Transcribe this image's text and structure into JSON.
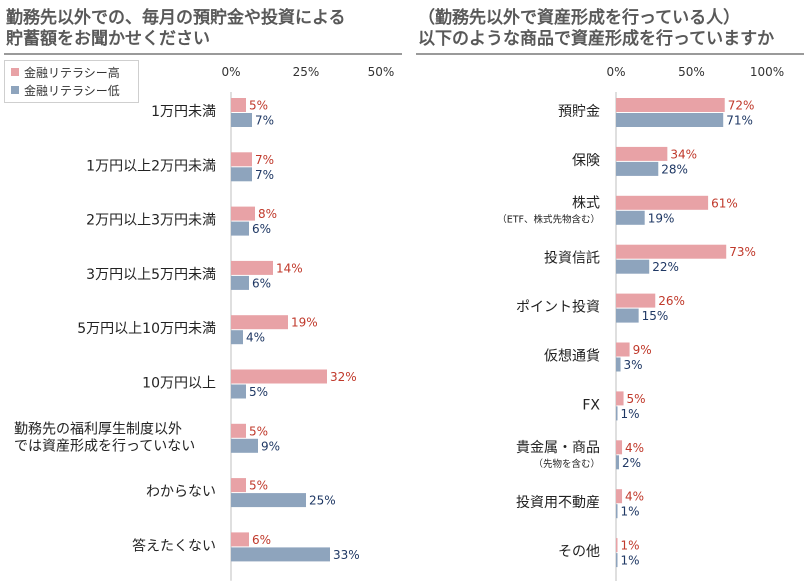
{
  "colors": {
    "high": "#E8A2A6",
    "low": "#8EA4BD",
    "high_text": "#C0392B",
    "low_text": "#1F3864",
    "category_text": "#222222",
    "tick_text": "#333333"
  },
  "left": {
    "title_lines": [
      "勤務先以外での、毎月の預貯金や投資による",
      "貯蓄額をお聞かせください"
    ]
  },
  "right": {
    "title_lines": [
      "（勤務先以外で資産形成を行っている人）",
      "以下のような商品で資産形成を行っていますか"
    ]
  },
  "legend": {
    "high_label": "金融リテラシー高",
    "low_label": "金融リテラシー低"
  },
  "chart_data": [
    {
      "type": "bar",
      "orientation": "horizontal",
      "categories": [
        "1万円未満",
        "1万円以上2万円未満",
        "2万円以上3万円未満",
        "3万円以上5万円未満",
        "5万円以上10万円未満",
        "10万円以上",
        "勤務先の福利厚生制度以外\nでは資産形成を行っていない",
        "わからない",
        "答えたくない"
      ],
      "category_sublabels": [
        "",
        "",
        "",
        "",
        "",
        "",
        "",
        "",
        ""
      ],
      "series": [
        {
          "name": "金融リテラシー高",
          "values": [
            5,
            7,
            8,
            14,
            19,
            32,
            5,
            5,
            6
          ]
        },
        {
          "name": "金融リテラシー低",
          "values": [
            7,
            7,
            6,
            6,
            4,
            5,
            9,
            25,
            33
          ]
        }
      ],
      "xlim": [
        0,
        50
      ],
      "xticks": [
        0,
        25,
        50
      ],
      "xtick_labels": [
        "0%",
        "25%",
        "50%"
      ],
      "value_suffix": "%",
      "gridlines": false,
      "legend_position": "top-left"
    },
    {
      "type": "bar",
      "orientation": "horizontal",
      "categories": [
        "預貯金",
        "保険",
        "株式",
        "投資信託",
        "ポイント投資",
        "仮想通貨",
        "FX",
        "貴金属・商品",
        "投資用不動産",
        "その他"
      ],
      "category_sublabels": [
        "",
        "",
        "（ETF、株式先物含む）",
        "",
        "",
        "",
        "",
        "（先物を含む）",
        "",
        ""
      ],
      "series": [
        {
          "name": "金融リテラシー高",
          "values": [
            72,
            34,
            61,
            73,
            26,
            9,
            5,
            4,
            4,
            1
          ]
        },
        {
          "name": "金融リテラシー低",
          "values": [
            71,
            28,
            19,
            22,
            15,
            3,
            1,
            2,
            1,
            1
          ]
        }
      ],
      "xlim": [
        0,
        100
      ],
      "xticks": [
        0,
        50,
        100
      ],
      "xtick_labels": [
        "0%",
        "50%",
        "100%"
      ],
      "value_suffix": "%",
      "gridlines": false
    }
  ]
}
